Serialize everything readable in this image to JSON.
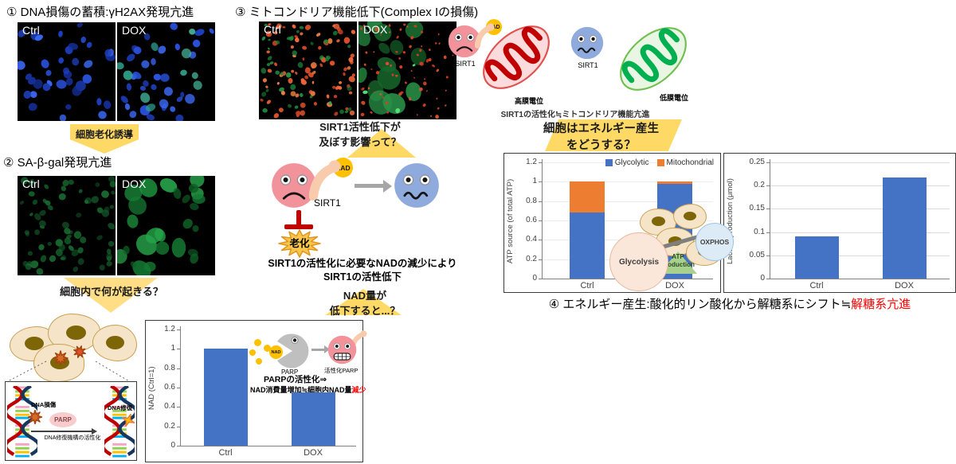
{
  "panel1": {
    "title": "① DNA損傷の蓄積:γH2AX発現亢進",
    "images": [
      {
        "label": "Ctrl"
      },
      {
        "label": "DOX"
      }
    ]
  },
  "flow1": {
    "label": "細胞老化誘導"
  },
  "panel2": {
    "title": "② SA-β-gal発現亢進",
    "images": [
      {
        "label": "Ctrl"
      },
      {
        "label": "DOX"
      }
    ]
  },
  "flow2": {
    "label": "細胞内で何が起きる？"
  },
  "dna_inset": {
    "damage_label": "DNA損傷",
    "repair_label": "DNA修復",
    "enzyme_label": "PARP",
    "arrow_label": "DNA修復機構の活性化"
  },
  "panel3": {
    "title": "③ ミトコンドリア機能低下(Complex Iの損傷)",
    "images": [
      {
        "label": "Ctrl"
      },
      {
        "label": "DOX"
      }
    ]
  },
  "flow3": {
    "line1": "SIRT1活性低下が",
    "line2": "及ぼす影響って？"
  },
  "mito_pair": {
    "sirt1_label": "SIRT1",
    "nad_label": "NAD",
    "high_label": "高膜電位",
    "low_label": "低膜電位",
    "caption": "SIRT1の活性化≒ミトコンドリア機能亢進"
  },
  "energy_question": {
    "line1": "細胞はエネルギー産生",
    "line2": "をどうする？"
  },
  "sirt1_diagram": {
    "sirt1_label": "SIRT1",
    "nad_label": "NAD",
    "aging_label": "老化",
    "caption_line1": "SIRT1の活性化に必要なNADの減少により",
    "caption_line2": "SIRT1の活性低下"
  },
  "flow4": {
    "line1": "NAD量が",
    "line2": "低下すると...？"
  },
  "nad_inset": {
    "nad_label": "NAD",
    "parp_label": "PARP",
    "active_parp_label": "活性化PARP",
    "text1": "PARPの活性化⇒",
    "text2": "NAD消費量増加≒細胞内NAD量",
    "text2_red": "減少"
  },
  "seesaw": {
    "glycolysis_label": "Glycolysis",
    "oxphos_label": "OXPHOS",
    "fulcrum_line1": "ATP",
    "fulcrum_line2": "production"
  },
  "panel4": {
    "title_black": "④ エネルギー産生:酸化的リン酸化から解糖系にシフト≒",
    "title_red": "解糖系亢進"
  },
  "colors": {
    "accent_yellow": "#FFD966",
    "bar_blue": "#4472C4",
    "bar_orange": "#ED7D31",
    "red_text": "#FF0000",
    "inhibit_red": "#C00000",
    "face_pink": "#F2929A",
    "face_blue": "#8FAADC",
    "skin": "#F8CBAD",
    "nad_yellow": "#FFC000"
  },
  "chart_data": [
    {
      "id": "nad",
      "type": "bar",
      "categories": [
        "Ctrl",
        "DOX"
      ],
      "values": [
        1.0,
        0.55
      ],
      "bar_color": "#4472C4",
      "ylabel": "NAD (Ctrl=1)",
      "ylim": [
        0,
        1.2
      ],
      "yticks": [
        0,
        0.2,
        0.4,
        0.6,
        0.8,
        1,
        1.2
      ],
      "ytick_labels": [
        "0",
        "0.2",
        "0.4",
        "0.6",
        "0.8",
        "1",
        "1.2"
      ],
      "grid": false
    },
    {
      "id": "atp",
      "type": "stacked-bar",
      "categories": [
        "Ctrl",
        "DOX"
      ],
      "series": [
        {
          "name": "Glycolytic",
          "color": "#4472C4",
          "values": [
            0.68,
            0.98
          ]
        },
        {
          "name": "Mitochondrial",
          "color": "#ED7D31",
          "values": [
            0.32,
            0.02
          ]
        }
      ],
      "ylabel": "ATP source (of total ATP)",
      "ylim": [
        0,
        1.2
      ],
      "yticks": [
        0,
        0.2,
        0.4,
        0.6,
        0.8,
        1,
        1.2
      ],
      "ytick_labels": [
        "0",
        "0.2",
        "0.4",
        "0.6",
        "0.8",
        "1",
        "1.2"
      ],
      "legend_position": "top-right",
      "grid": true
    },
    {
      "id": "lactate",
      "type": "bar",
      "categories": [
        "Ctrl",
        "DOX"
      ],
      "values": [
        0.09,
        0.217
      ],
      "bar_color": "#4472C4",
      "ylabel": "Lactate production (μmol)",
      "ylim": [
        0,
        0.25
      ],
      "yticks": [
        0,
        0.05,
        0.1,
        0.15,
        0.2,
        0.25
      ],
      "ytick_labels": [
        "0",
        "0.05",
        "0.1",
        "0.15",
        "0.2",
        "0.25"
      ],
      "grid": true
    }
  ]
}
